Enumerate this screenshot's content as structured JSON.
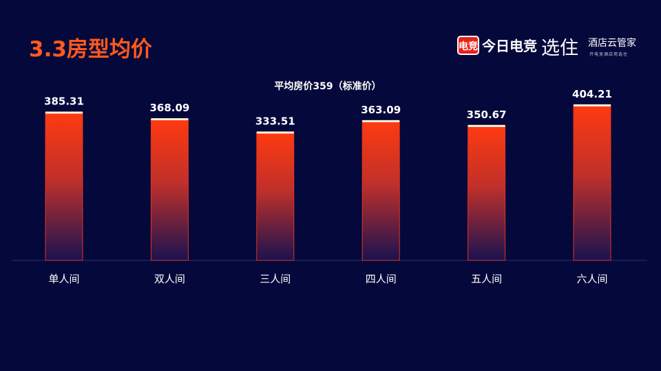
{
  "page": {
    "title": "3.3房型均价"
  },
  "brand": {
    "badge": "电竞",
    "name1": "今日电竞",
    "name2": "选住",
    "name3": "酒店云管家",
    "tagline": "开电竞酒店用选住"
  },
  "colors": {
    "background": "#05083a",
    "title": "#ff5a1c",
    "bar_top": "#ff3a10",
    "bar_bottom": "#1a1250",
    "bar_cap": "#fff4e0"
  },
  "chart_data": {
    "type": "bar",
    "title": "",
    "subtitle": "平均房价359（标准价）",
    "categories": [
      "单人间",
      "双人间",
      "三人间",
      "四人间",
      "五人间",
      "六人间"
    ],
    "values": [
      385.31,
      368.09,
      333.51,
      363.09,
      350.67,
      404.21
    ],
    "value_labels": [
      "385.31",
      "368.09",
      "333.51",
      "363.09",
      "350.67",
      "404.21"
    ],
    "ylim": [
      0,
      420
    ],
    "grid": false,
    "legend": "none"
  }
}
